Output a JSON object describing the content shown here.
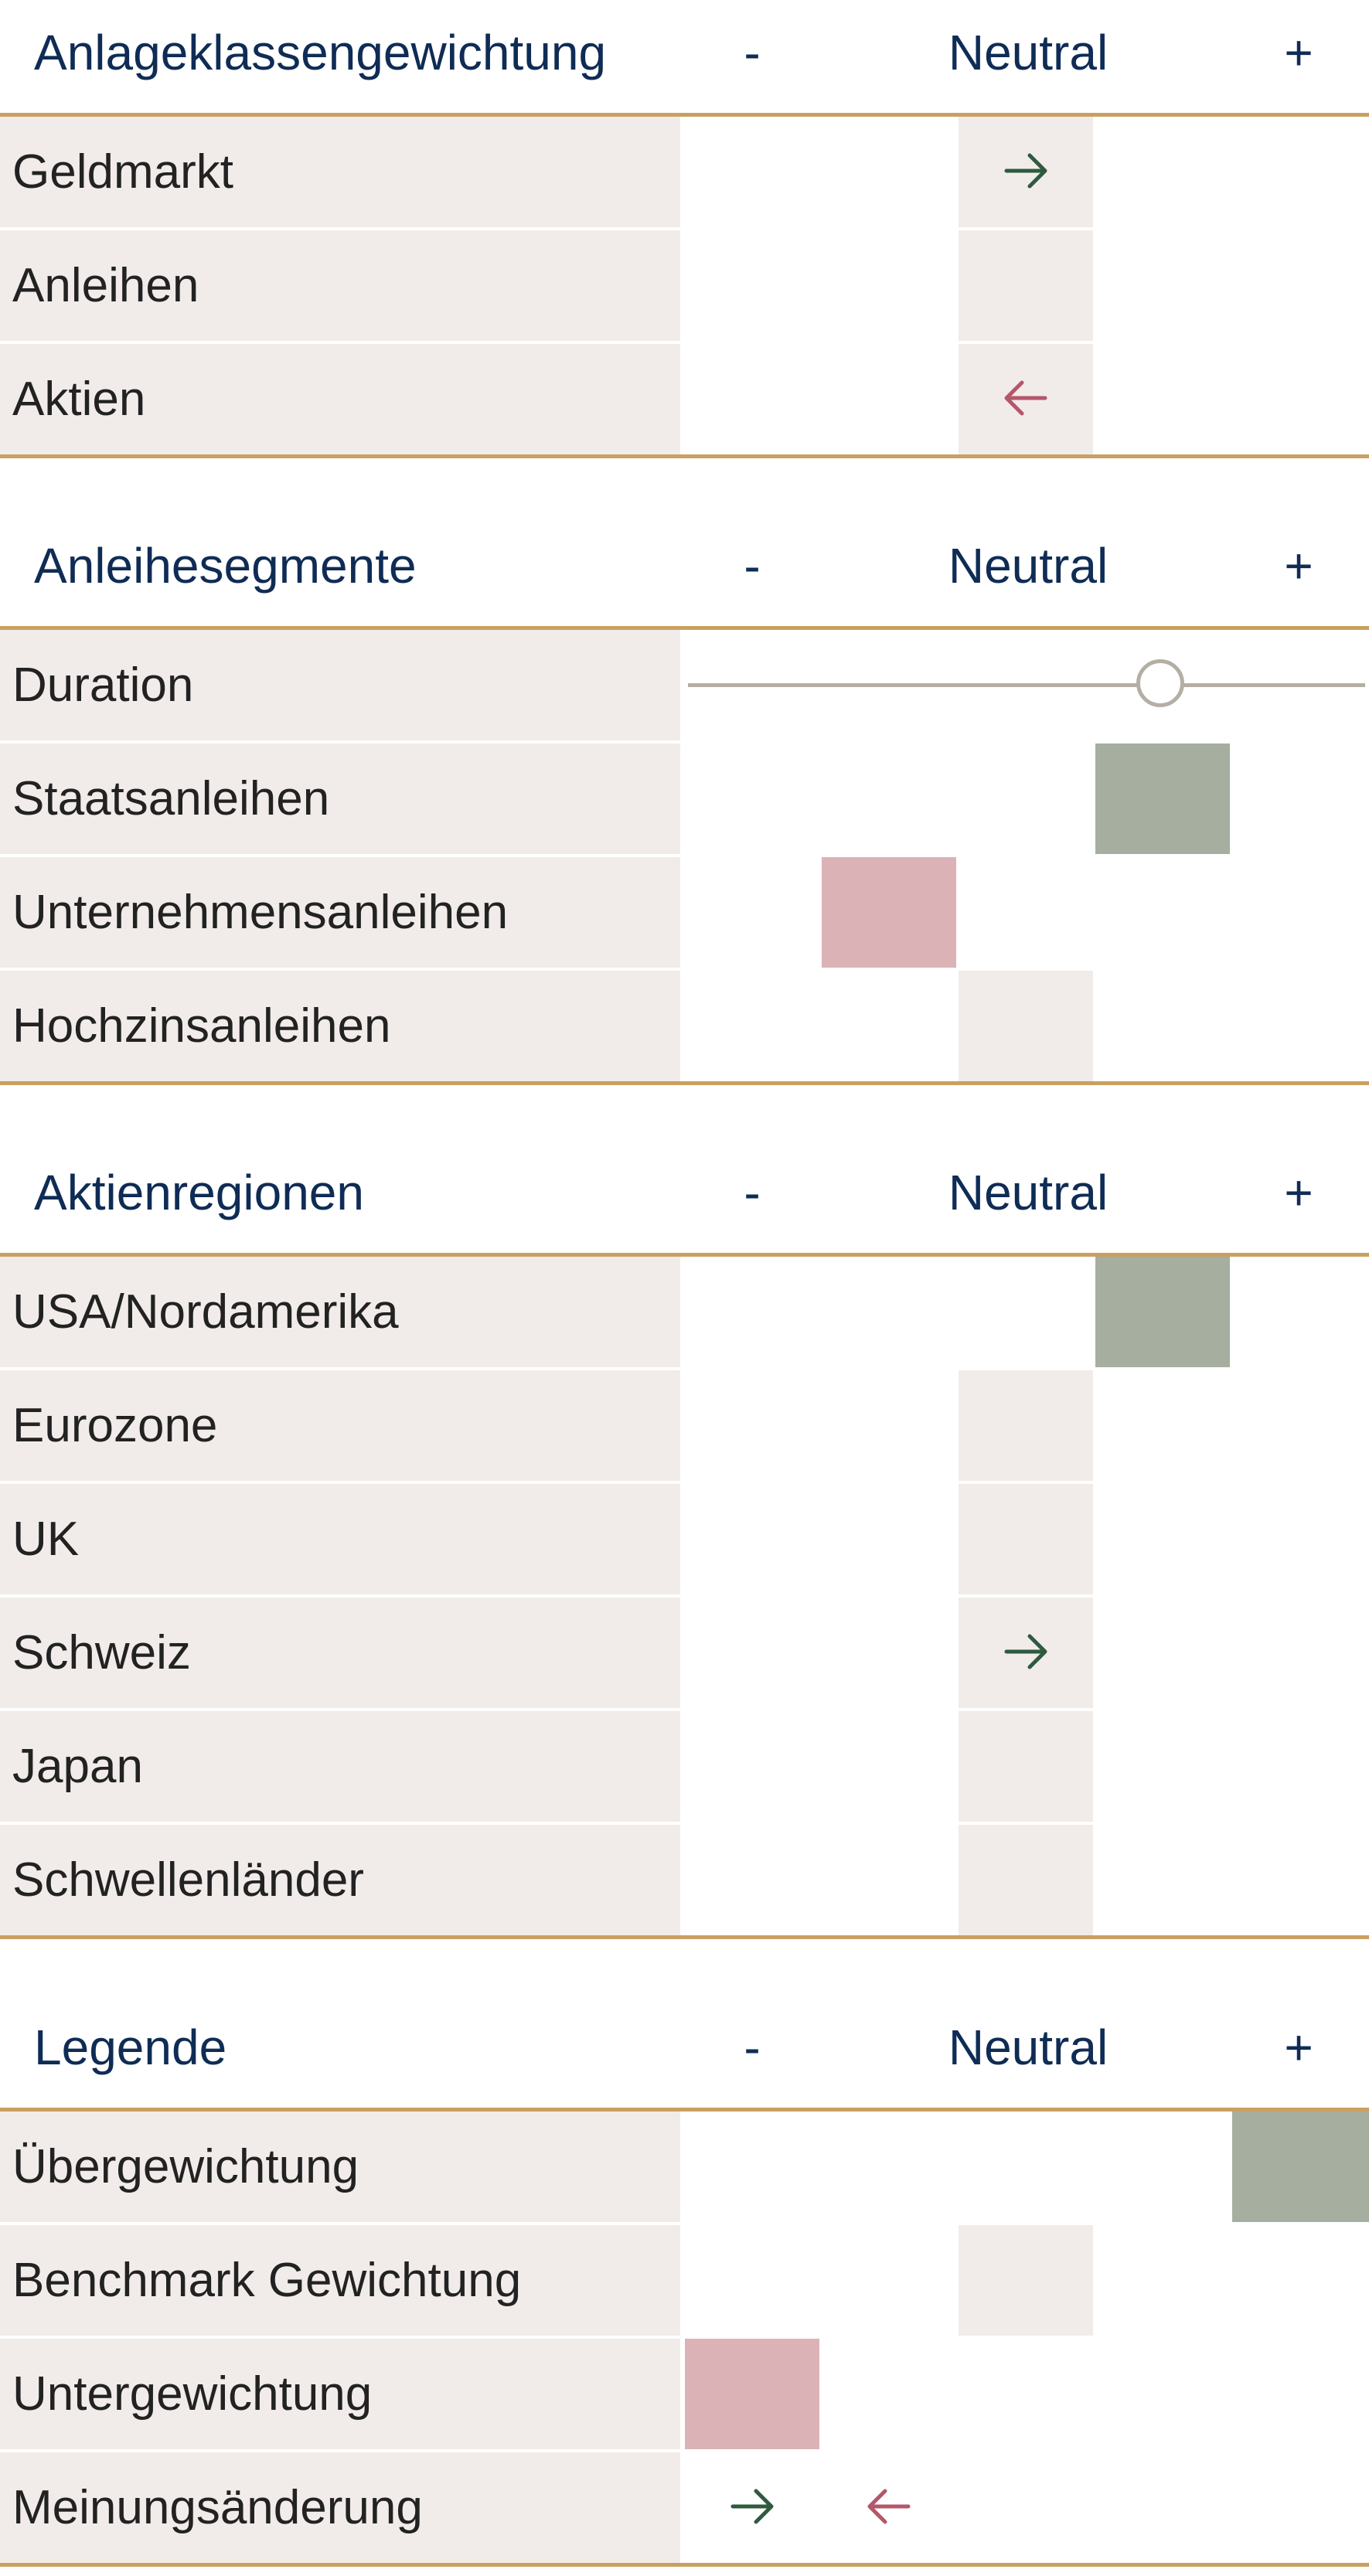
{
  "colors": {
    "title": "#0f2c55",
    "rule": "#c9a060",
    "neutral": "#f1ecea",
    "overweight": "#a6ae9f",
    "underweight": "#dbb3b6",
    "arrow_up": "#2f5a3f",
    "arrow_down": "#b5566b"
  },
  "columns": {
    "minus": "-",
    "neutral": "Neutral",
    "plus": "+"
  },
  "sections": [
    {
      "title": "Anlageklassengewichtung",
      "rows": [
        {
          "label": "Geldmarkt",
          "position": "neutral",
          "change": "arrow-right-icon"
        },
        {
          "label": "Anleihen",
          "position": "neutral"
        },
        {
          "label": "Aktien",
          "position": "neutral",
          "change": "arrow-left-icon"
        }
      ]
    },
    {
      "title": "Anleihesegmente",
      "rows": [
        {
          "label": "Duration",
          "slider_level": 0.7
        },
        {
          "label": "Staatsanleihen",
          "position": "over"
        },
        {
          "label": "Unternehmensanleihen",
          "position": "under"
        },
        {
          "label": "Hochzinsanleihen",
          "position": "neutral"
        }
      ]
    },
    {
      "title": "Aktienregionen",
      "rows": [
        {
          "label": "USA/Nordamerika",
          "position": "over"
        },
        {
          "label": "Eurozone",
          "position": "neutral"
        },
        {
          "label": "UK",
          "position": "neutral"
        },
        {
          "label": "Schweiz",
          "position": "neutral",
          "change": "arrow-right-icon"
        },
        {
          "label": "Japan",
          "position": "neutral"
        },
        {
          "label": "Schwellenländer",
          "position": "neutral"
        }
      ]
    },
    {
      "title": "Legende",
      "rows": [
        {
          "label": "Übergewichtung",
          "position": "strong-over"
        },
        {
          "label": "Benchmark Gewichtung",
          "position": "neutral"
        },
        {
          "label": "Untergewichtung",
          "position": "strong-under"
        },
        {
          "label": "Meinungsänderung",
          "change": "both-arrows"
        }
      ]
    }
  ]
}
